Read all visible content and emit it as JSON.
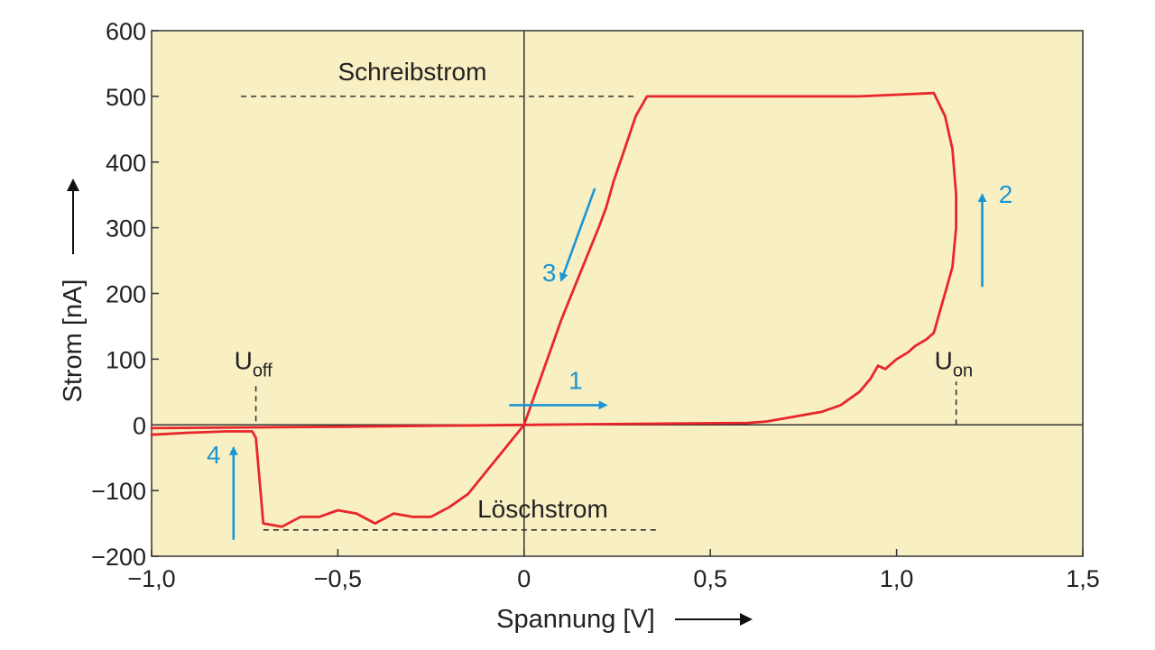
{
  "chart_data": {
    "type": "line",
    "xlabel": "Spannung [V]",
    "ylabel": "Strom [nA]",
    "xlim": [
      -1.0,
      1.5
    ],
    "ylim": [
      -200,
      600
    ],
    "x_ticks": [
      -1.0,
      -0.5,
      0,
      0.5,
      1.0,
      1.5
    ],
    "x_tick_labels": [
      "−1,0",
      "−0,5",
      "0",
      "0,5",
      "1,0",
      "1,5"
    ],
    "y_ticks": [
      -200,
      -100,
      0,
      100,
      200,
      300,
      400,
      500,
      600
    ],
    "y_tick_labels": [
      "−200",
      "−100",
      "0",
      "100",
      "200",
      "300",
      "400",
      "500",
      "600"
    ],
    "series": [
      {
        "color": "#e8262b",
        "x": [
          0.0,
          0.2,
          0.4,
          0.6,
          0.65,
          0.7,
          0.8,
          0.85,
          0.9,
          0.93,
          0.95,
          0.97,
          1.0,
          1.03,
          1.05,
          1.08,
          1.1,
          1.12,
          1.13,
          1.15,
          1.16,
          1.16,
          1.15,
          1.13,
          1.1,
          0.9,
          0.6,
          0.33,
          0.3,
          0.27,
          0.24,
          0.22,
          0.2,
          0.15,
          0.1,
          0.05,
          0.0,
          -0.05,
          -0.1,
          -0.15,
          -0.2,
          -0.25,
          -0.3,
          -0.35,
          -0.4,
          -0.45,
          -0.5,
          -0.55,
          -0.6,
          -0.65,
          -0.7,
          -0.72,
          -0.73,
          -0.8,
          -0.9,
          -1.0
        ],
        "y": [
          0,
          1,
          2,
          3,
          5,
          10,
          20,
          30,
          50,
          70,
          90,
          85,
          100,
          110,
          120,
          130,
          140,
          180,
          200,
          240,
          300,
          350,
          420,
          470,
          505,
          500,
          500,
          500,
          470,
          420,
          370,
          330,
          300,
          230,
          160,
          80,
          0,
          -35,
          -70,
          -105,
          -125,
          -140,
          -140,
          -135,
          -150,
          -135,
          -130,
          -140,
          -140,
          -155,
          -150,
          -20,
          -10,
          -10,
          -12,
          -15
        ]
      },
      {
        "color": "#e8262b",
        "x": [
          -1.0,
          -0.5,
          0.0
        ],
        "y": [
          -5,
          -3,
          0
        ]
      }
    ],
    "reference_lines": [
      {
        "label": "Schreibstrom",
        "y": 500,
        "x_from": -0.76,
        "x_to": 0.3
      },
      {
        "label": "Löschstrom",
        "y": -160,
        "x_from": -0.7,
        "x_to": 0.36
      }
    ],
    "markers": [
      {
        "label": "U",
        "sub": "off",
        "x": -0.72,
        "y": 0
      },
      {
        "label": "U",
        "sub": "on",
        "x": 1.16,
        "y": 0
      }
    ],
    "arrows": [
      {
        "number": "1",
        "x_from": -0.04,
        "y_from": 30,
        "x_to": 0.22,
        "y_to": 30
      },
      {
        "number": "2",
        "x_from": 1.23,
        "y_from": 210,
        "x_to": 1.23,
        "y_to": 350
      },
      {
        "number": "3",
        "x_from": 0.19,
        "y_from": 360,
        "x_to": 0.1,
        "y_to": 220
      },
      {
        "number": "4",
        "x_from": -0.78,
        "y_from": -175,
        "x_to": -0.78,
        "y_to": -35
      }
    ],
    "background": "#f8efc2",
    "grid": false
  }
}
